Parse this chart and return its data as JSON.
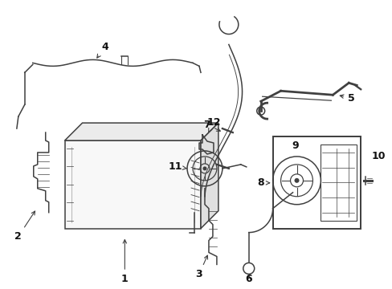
{
  "background_color": "#ffffff",
  "line_color": "#404040",
  "label_color": "#111111",
  "fig_width": 4.89,
  "fig_height": 3.6,
  "dpi": 100
}
